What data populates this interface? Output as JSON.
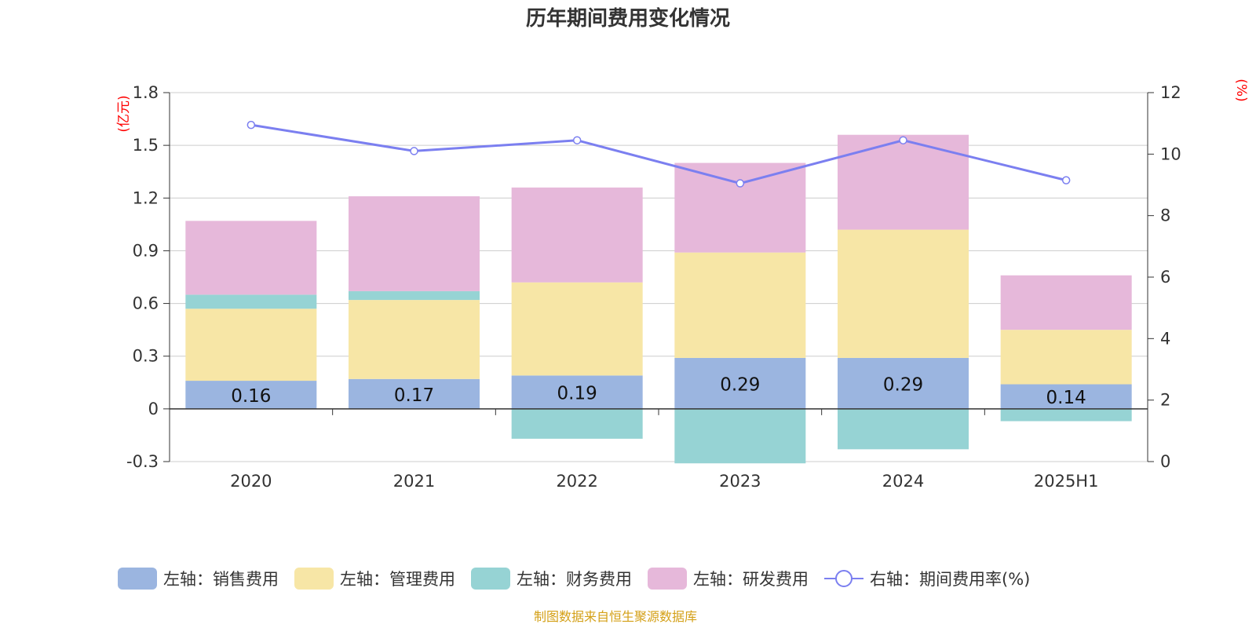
{
  "chart_data": {
    "type": "bar",
    "title": "历年期间费用变化情况",
    "categories": [
      "2020",
      "2021",
      "2022",
      "2023",
      "2024",
      "2025H1"
    ],
    "left_axis": {
      "unit": "(亿元)",
      "ylim": [
        -0.3,
        1.8
      ],
      "ticks": [
        "1.8",
        "1.5",
        "1.2",
        "0.9",
        "0.6",
        "0.3",
        "0",
        "-0.3"
      ]
    },
    "right_axis": {
      "unit": "(%)",
      "ylim": [
        0,
        12
      ],
      "ticks": [
        "12",
        "10",
        "8",
        "6",
        "4",
        "2",
        "0"
      ]
    },
    "series": [
      {
        "name": "左轴：销售费用",
        "type": "bar",
        "axis": "left",
        "color": "#9bb5e0",
        "values": [
          0.16,
          0.17,
          0.19,
          0.29,
          0.29,
          0.14
        ],
        "labels": [
          "0.16",
          "0.17",
          "0.19",
          "0.29",
          "0.29",
          "0.14"
        ]
      },
      {
        "name": "左轴：管理费用",
        "type": "bar",
        "axis": "left",
        "color": "#f7e6a6",
        "values": [
          0.41,
          0.45,
          0.53,
          0.6,
          0.73,
          0.31
        ]
      },
      {
        "name": "左轴：财务费用",
        "type": "bar",
        "axis": "left",
        "color": "#96d3d4",
        "values": [
          0.08,
          0.05,
          -0.17,
          -0.31,
          -0.23,
          -0.07
        ]
      },
      {
        "name": "左轴：研发费用",
        "type": "bar",
        "axis": "left",
        "color": "#e6b8da",
        "values": [
          0.42,
          0.54,
          0.54,
          0.51,
          0.54,
          0.31
        ]
      },
      {
        "name": "右轴：期间费用率(%)",
        "type": "line",
        "axis": "right",
        "color": "#7b7ff0",
        "values": [
          10.95,
          10.1,
          10.45,
          9.05,
          10.45,
          9.15
        ]
      }
    ],
    "grid": true,
    "legend_position": "bottom"
  },
  "source_text": "制图数据来自恒生聚源数据库"
}
